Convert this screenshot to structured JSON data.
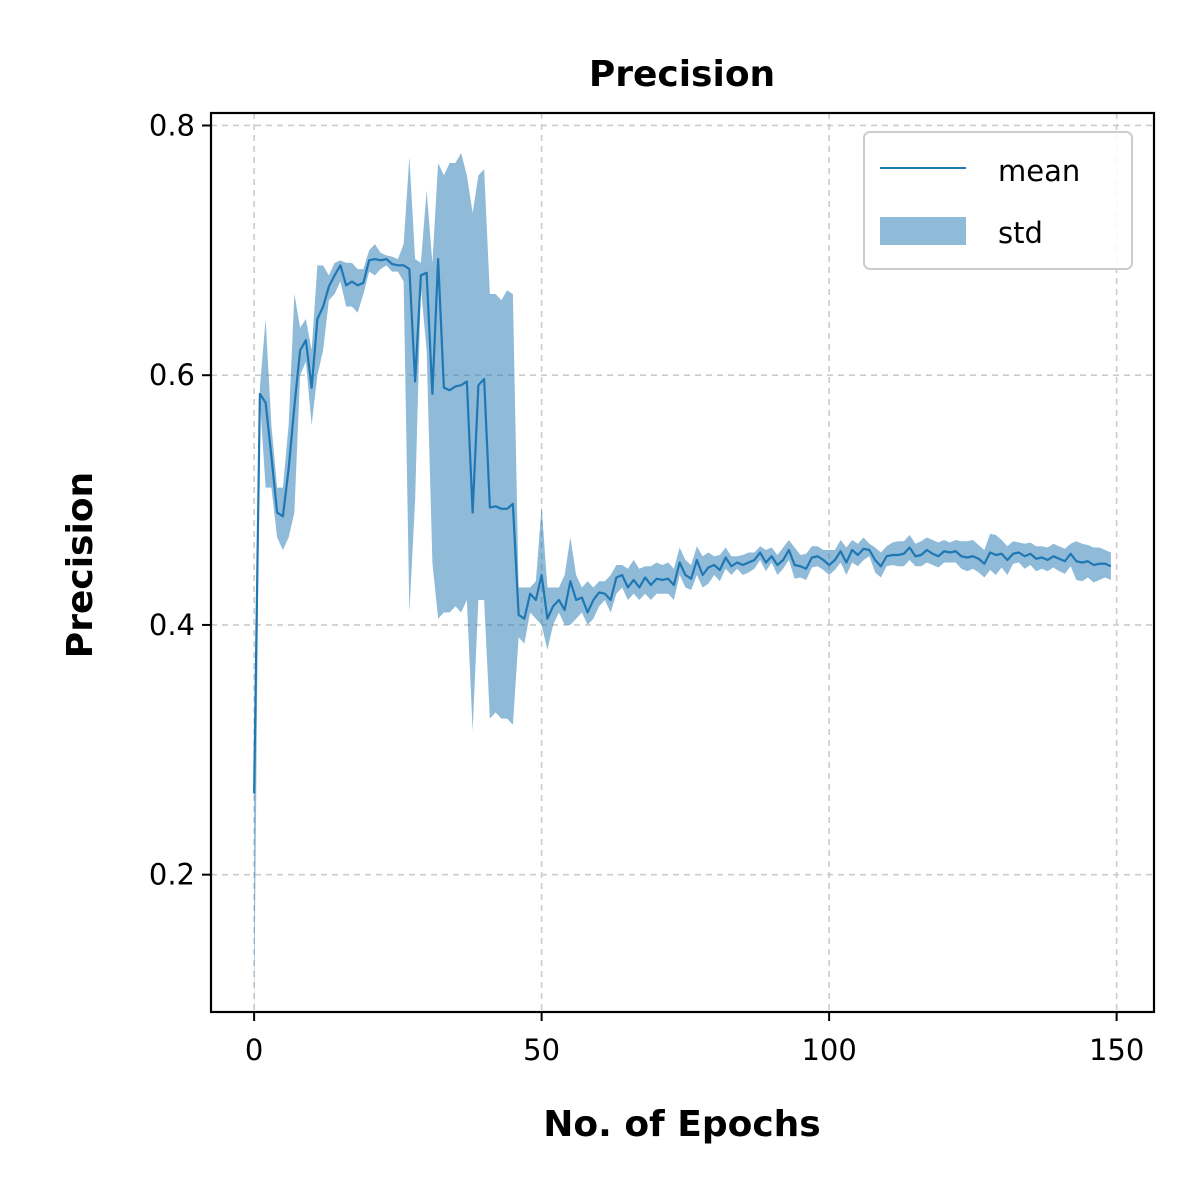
{
  "chart_data": {
    "type": "line",
    "title": "Precision",
    "xlabel": "No. of Epochs",
    "ylabel": "Precision",
    "xlim": [
      -7.5,
      156.5
    ],
    "ylim": [
      0.09,
      0.81
    ],
    "xticks": [
      0,
      50,
      100,
      150
    ],
    "yticks": [
      0.2,
      0.4,
      0.6,
      0.8
    ],
    "xtick_labels": [
      "0",
      "50",
      "100",
      "150"
    ],
    "ytick_labels": [
      "0.2",
      "0.4",
      "0.6",
      "0.8"
    ],
    "grid": true,
    "legend_position": "top-right",
    "colors": {
      "line": "#1f77b4",
      "band": "#1f77b4",
      "band_opacity": 0.5
    },
    "series": [
      {
        "name": "mean",
        "kind": "line",
        "x": [
          0,
          1,
          2,
          3,
          4,
          5,
          6,
          7,
          8,
          9,
          10,
          11,
          12,
          13,
          14,
          15,
          16,
          17,
          18,
          19,
          20,
          21,
          22,
          23,
          24,
          25,
          26,
          27,
          28,
          29,
          30,
          31,
          32,
          33,
          34,
          35,
          36,
          37,
          38,
          39,
          40,
          41,
          42,
          43,
          44,
          45,
          46,
          47,
          48,
          49,
          50,
          51,
          52,
          53,
          54,
          55,
          56,
          57,
          58,
          59,
          60,
          61,
          62,
          63,
          64,
          65,
          66,
          67,
          68,
          69,
          70,
          71,
          72,
          73,
          74,
          75,
          76,
          77,
          78,
          79,
          80,
          81,
          82,
          83,
          84,
          85,
          86,
          87,
          88,
          89,
          90,
          91,
          92,
          93,
          94,
          95,
          96,
          97,
          98,
          99,
          100,
          101,
          102,
          103,
          104,
          105,
          106,
          107,
          108,
          109,
          110,
          111,
          112,
          113,
          114,
          115,
          116,
          117,
          118,
          119,
          120,
          121,
          122,
          123,
          124,
          125,
          126,
          127,
          128,
          129,
          130,
          131,
          132,
          133,
          134,
          135,
          136,
          137,
          138,
          139,
          140,
          141,
          142,
          143,
          144,
          145,
          146,
          147,
          148,
          149
        ],
        "values": [
          0.265,
          0.585,
          0.578,
          0.535,
          0.49,
          0.487,
          0.525,
          0.575,
          0.62,
          0.628,
          0.59,
          0.645,
          0.655,
          0.671,
          0.68,
          0.688,
          0.672,
          0.675,
          0.672,
          0.674,
          0.692,
          0.693,
          0.692,
          0.693,
          0.689,
          0.688,
          0.688,
          0.685,
          0.595,
          0.68,
          0.682,
          0.585,
          0.693,
          0.59,
          0.588,
          0.591,
          0.592,
          0.595,
          0.49,
          0.592,
          0.597,
          0.494,
          0.495,
          0.493,
          0.493,
          0.497,
          0.408,
          0.405,
          0.425,
          0.42,
          0.44,
          0.405,
          0.415,
          0.42,
          0.412,
          0.435,
          0.42,
          0.422,
          0.41,
          0.42,
          0.426,
          0.425,
          0.42,
          0.438,
          0.44,
          0.43,
          0.436,
          0.43,
          0.438,
          0.432,
          0.437,
          0.436,
          0.437,
          0.432,
          0.45,
          0.44,
          0.437,
          0.452,
          0.44,
          0.446,
          0.448,
          0.444,
          0.454,
          0.447,
          0.45,
          0.448,
          0.45,
          0.452,
          0.458,
          0.45,
          0.455,
          0.448,
          0.452,
          0.46,
          0.448,
          0.447,
          0.445,
          0.454,
          0.455,
          0.452,
          0.448,
          0.452,
          0.459,
          0.45,
          0.46,
          0.456,
          0.461,
          0.46,
          0.452,
          0.447,
          0.455,
          0.456,
          0.456,
          0.457,
          0.462,
          0.455,
          0.456,
          0.46,
          0.457,
          0.455,
          0.459,
          0.458,
          0.459,
          0.455,
          0.454,
          0.455,
          0.453,
          0.449,
          0.458,
          0.456,
          0.457,
          0.452,
          0.457,
          0.458,
          0.455,
          0.457,
          0.453,
          0.454,
          0.452,
          0.455,
          0.453,
          0.451,
          0.457,
          0.451,
          0.45,
          0.451,
          0.448,
          0.449,
          0.449,
          0.447
        ]
      },
      {
        "name": "std",
        "kind": "band",
        "x": [
          0,
          1,
          2,
          3,
          4,
          5,
          6,
          7,
          8,
          9,
          10,
          11,
          12,
          13,
          14,
          15,
          16,
          17,
          18,
          19,
          20,
          21,
          22,
          23,
          24,
          25,
          26,
          27,
          28,
          29,
          30,
          31,
          32,
          33,
          34,
          35,
          36,
          37,
          38,
          39,
          40,
          41,
          42,
          43,
          44,
          45,
          46,
          47,
          48,
          49,
          50,
          51,
          52,
          53,
          54,
          55,
          56,
          57,
          58,
          59,
          60,
          61,
          62,
          63,
          64,
          65,
          66,
          67,
          68,
          69,
          70,
          71,
          72,
          73,
          74,
          75,
          76,
          77,
          78,
          79,
          80,
          81,
          82,
          83,
          84,
          85,
          86,
          87,
          88,
          89,
          90,
          91,
          92,
          93,
          94,
          95,
          96,
          97,
          98,
          99,
          100,
          101,
          102,
          103,
          104,
          105,
          106,
          107,
          108,
          109,
          110,
          111,
          112,
          113,
          114,
          115,
          116,
          117,
          118,
          119,
          120,
          121,
          122,
          123,
          124,
          125,
          126,
          127,
          128,
          129,
          130,
          131,
          132,
          133,
          134,
          135,
          136,
          137,
          138,
          139,
          140,
          141,
          142,
          143,
          144,
          145,
          146,
          147,
          148,
          149
        ],
        "upper": [
          0.3,
          0.59,
          0.645,
          0.56,
          0.51,
          0.51,
          0.56,
          0.665,
          0.638,
          0.645,
          0.62,
          0.688,
          0.688,
          0.68,
          0.69,
          0.692,
          0.69,
          0.69,
          0.685,
          0.685,
          0.7,
          0.705,
          0.698,
          0.696,
          0.695,
          0.693,
          0.705,
          0.775,
          0.693,
          0.69,
          0.748,
          0.69,
          0.77,
          0.76,
          0.77,
          0.77,
          0.778,
          0.76,
          0.73,
          0.76,
          0.765,
          0.665,
          0.665,
          0.66,
          0.668,
          0.665,
          0.43,
          0.43,
          0.43,
          0.435,
          0.495,
          0.43,
          0.43,
          0.43,
          0.44,
          0.47,
          0.44,
          0.43,
          0.435,
          0.43,
          0.435,
          0.435,
          0.44,
          0.448,
          0.448,
          0.445,
          0.452,
          0.445,
          0.447,
          0.447,
          0.45,
          0.448,
          0.45,
          0.445,
          0.462,
          0.452,
          0.448,
          0.463,
          0.455,
          0.458,
          0.455,
          0.456,
          0.462,
          0.455,
          0.455,
          0.456,
          0.458,
          0.458,
          0.463,
          0.46,
          0.462,
          0.456,
          0.462,
          0.468,
          0.462,
          0.456,
          0.457,
          0.463,
          0.463,
          0.46,
          0.46,
          0.46,
          0.468,
          0.462,
          0.468,
          0.465,
          0.47,
          0.465,
          0.462,
          0.458,
          0.463,
          0.466,
          0.467,
          0.467,
          0.472,
          0.465,
          0.467,
          0.47,
          0.468,
          0.466,
          0.468,
          0.466,
          0.468,
          0.467,
          0.467,
          0.468,
          0.464,
          0.46,
          0.473,
          0.472,
          0.468,
          0.463,
          0.467,
          0.466,
          0.465,
          0.466,
          0.463,
          0.463,
          0.462,
          0.465,
          0.463,
          0.461,
          0.465,
          0.467,
          0.465,
          0.464,
          0.462,
          0.462,
          0.46,
          0.458
        ],
        "lower": [
          0.085,
          0.58,
          0.51,
          0.51,
          0.47,
          0.46,
          0.47,
          0.49,
          0.6,
          0.611,
          0.56,
          0.6,
          0.62,
          0.66,
          0.665,
          0.675,
          0.655,
          0.655,
          0.65,
          0.665,
          0.683,
          0.68,
          0.685,
          0.688,
          0.683,
          0.683,
          0.675,
          0.41,
          0.5,
          0.67,
          0.62,
          0.45,
          0.405,
          0.41,
          0.41,
          0.415,
          0.41,
          0.42,
          0.315,
          0.42,
          0.42,
          0.325,
          0.33,
          0.325,
          0.325,
          0.32,
          0.39,
          0.385,
          0.41,
          0.405,
          0.4,
          0.38,
          0.4,
          0.41,
          0.4,
          0.4,
          0.405,
          0.41,
          0.4,
          0.405,
          0.415,
          0.42,
          0.41,
          0.425,
          0.43,
          0.42,
          0.425,
          0.42,
          0.425,
          0.42,
          0.425,
          0.425,
          0.425,
          0.42,
          0.44,
          0.43,
          0.428,
          0.44,
          0.43,
          0.433,
          0.44,
          0.435,
          0.445,
          0.44,
          0.445,
          0.44,
          0.442,
          0.445,
          0.452,
          0.443,
          0.45,
          0.44,
          0.445,
          0.452,
          0.437,
          0.438,
          0.436,
          0.446,
          0.447,
          0.444,
          0.44,
          0.444,
          0.45,
          0.44,
          0.45,
          0.447,
          0.452,
          0.455,
          0.442,
          0.438,
          0.447,
          0.448,
          0.447,
          0.447,
          0.452,
          0.447,
          0.447,
          0.45,
          0.448,
          0.446,
          0.45,
          0.45,
          0.45,
          0.445,
          0.443,
          0.445,
          0.442,
          0.438,
          0.444,
          0.44,
          0.446,
          0.44,
          0.449,
          0.45,
          0.445,
          0.448,
          0.443,
          0.445,
          0.443,
          0.446,
          0.443,
          0.441,
          0.447,
          0.436,
          0.435,
          0.438,
          0.434,
          0.436,
          0.438,
          0.436
        ]
      }
    ]
  }
}
